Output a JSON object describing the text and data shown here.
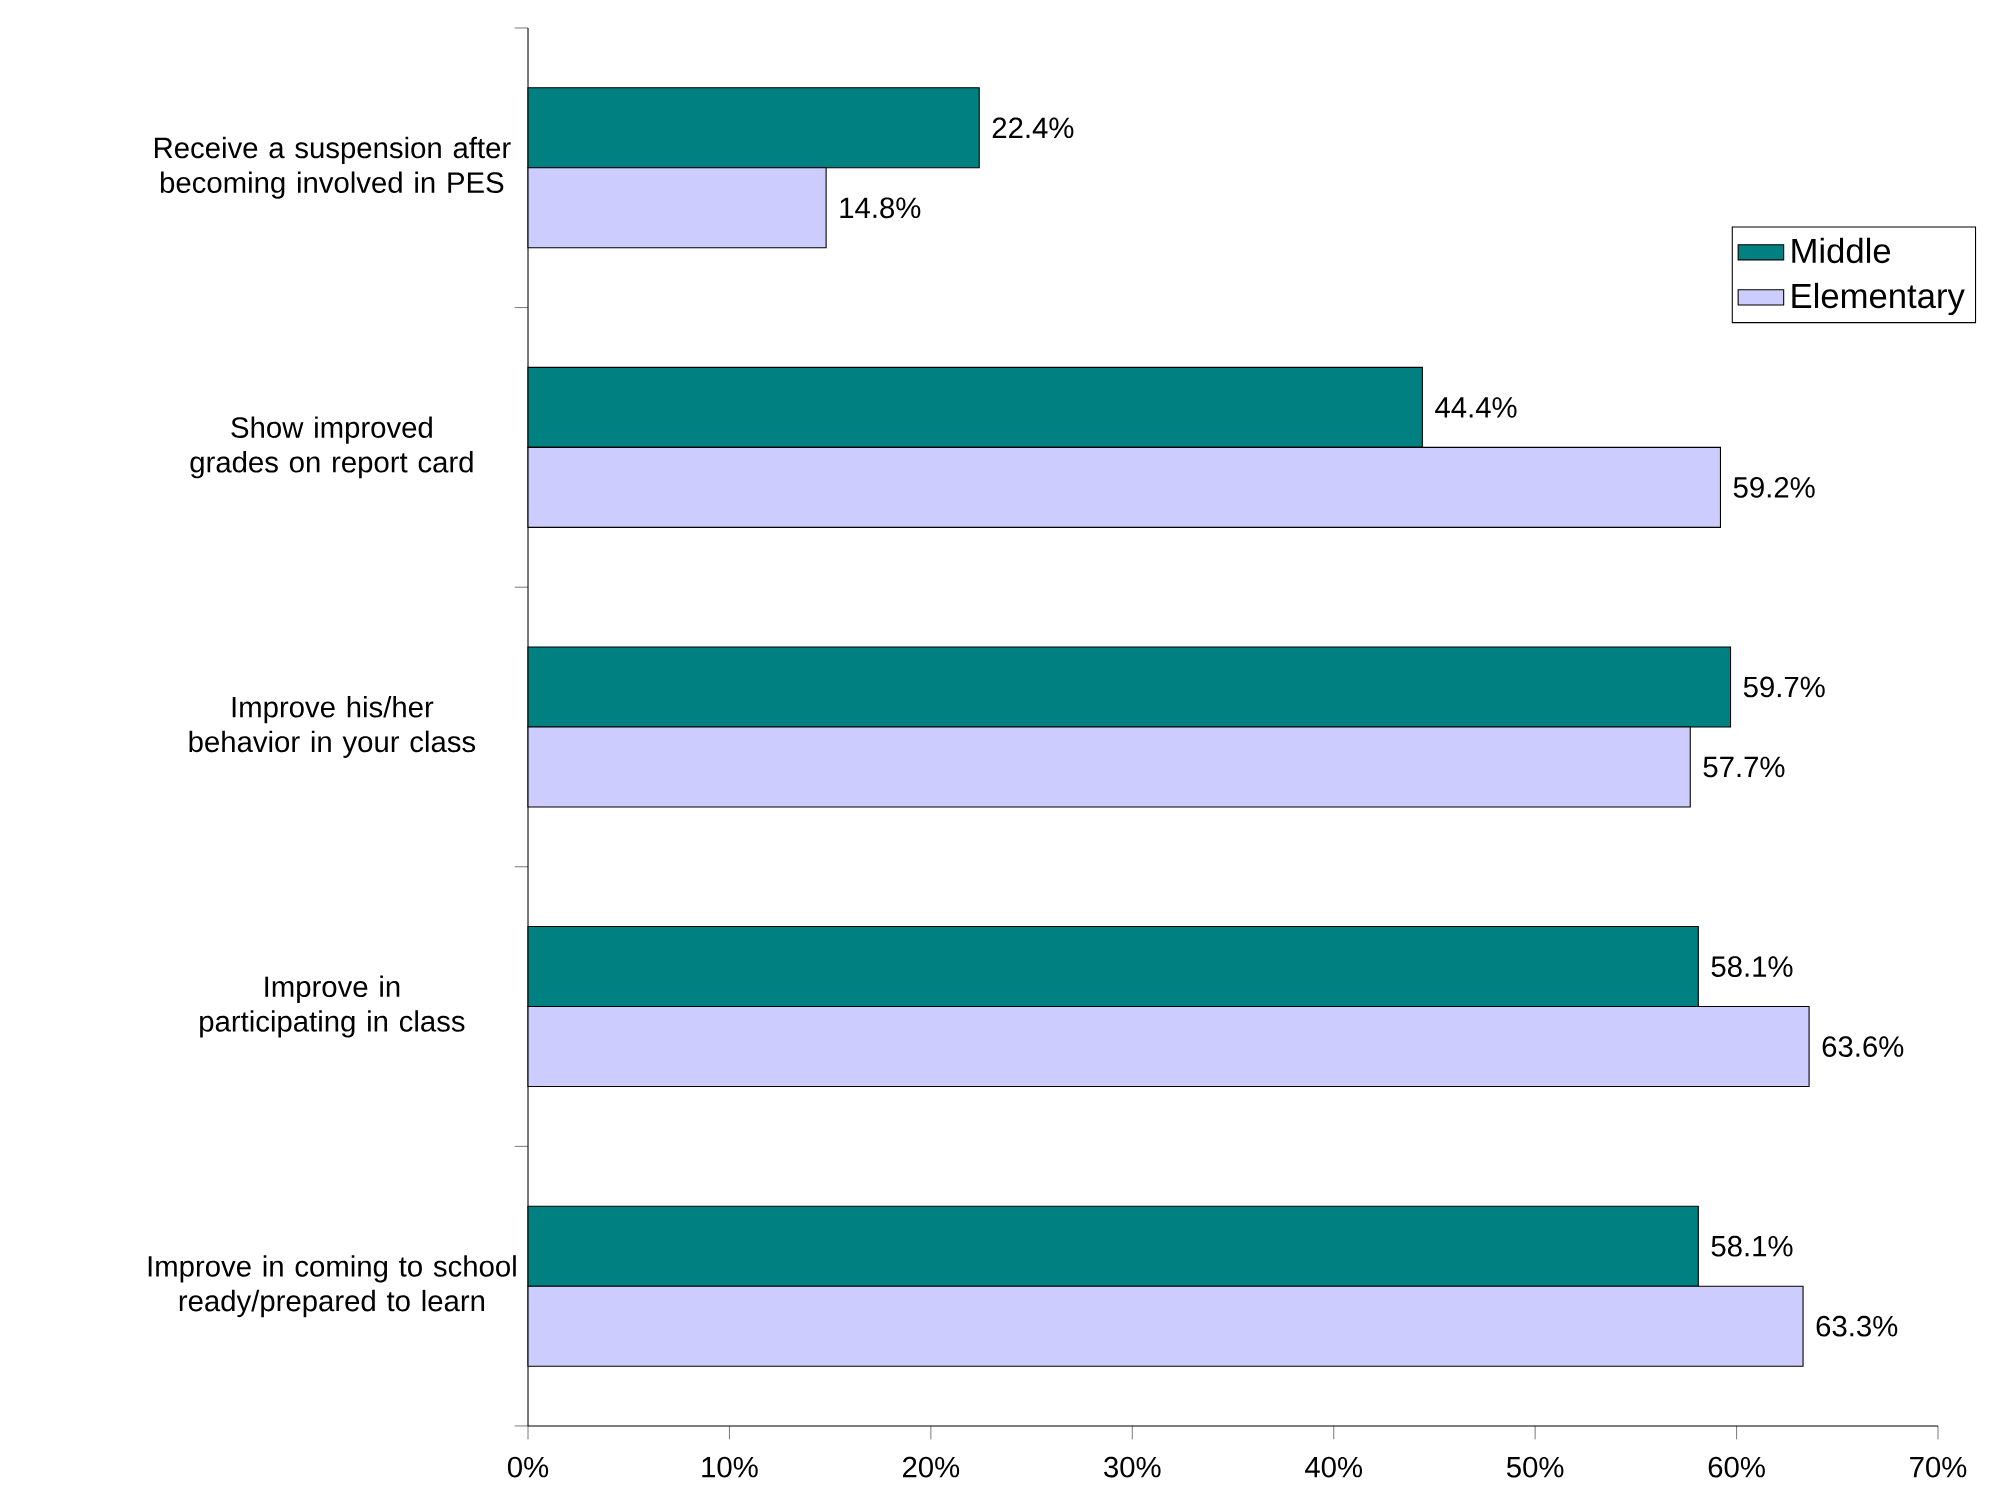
{
  "chart_data": {
    "type": "bar",
    "orientation": "horizontal",
    "categories": [
      "Receive a suspension after becoming involved in PES",
      "Show improved grades on report card",
      "Improve his/her behavior in your class",
      "Improve in participating in class",
      "Improve in coming to school ready/prepared to learn"
    ],
    "series": [
      {
        "name": "Middle",
        "color": "#008080",
        "values": [
          22.4,
          44.4,
          59.7,
          58.1,
          58.1
        ],
        "value_labels": [
          "22.4%",
          "44.4%",
          "59.7%",
          "58.1%",
          "58.1%"
        ]
      },
      {
        "name": "Elementary",
        "color": "#ccccff",
        "values": [
          14.8,
          59.2,
          57.7,
          63.6,
          63.3
        ],
        "value_labels": [
          "14.8%",
          "59.2%",
          "57.7%",
          "63.6%",
          "63.3%"
        ]
      }
    ],
    "xlim": [
      0,
      70
    ],
    "xticks": [
      {
        "value": 0,
        "label": "0%"
      },
      {
        "value": 10,
        "label": "10%"
      },
      {
        "value": 20,
        "label": "20%"
      },
      {
        "value": 30,
        "label": "30%"
      },
      {
        "value": 40,
        "label": "40%"
      },
      {
        "value": 50,
        "label": "50%"
      },
      {
        "value": 60,
        "label": "60%"
      },
      {
        "value": 70,
        "label": "70%"
      }
    ],
    "grid": false,
    "legend": "top right"
  }
}
